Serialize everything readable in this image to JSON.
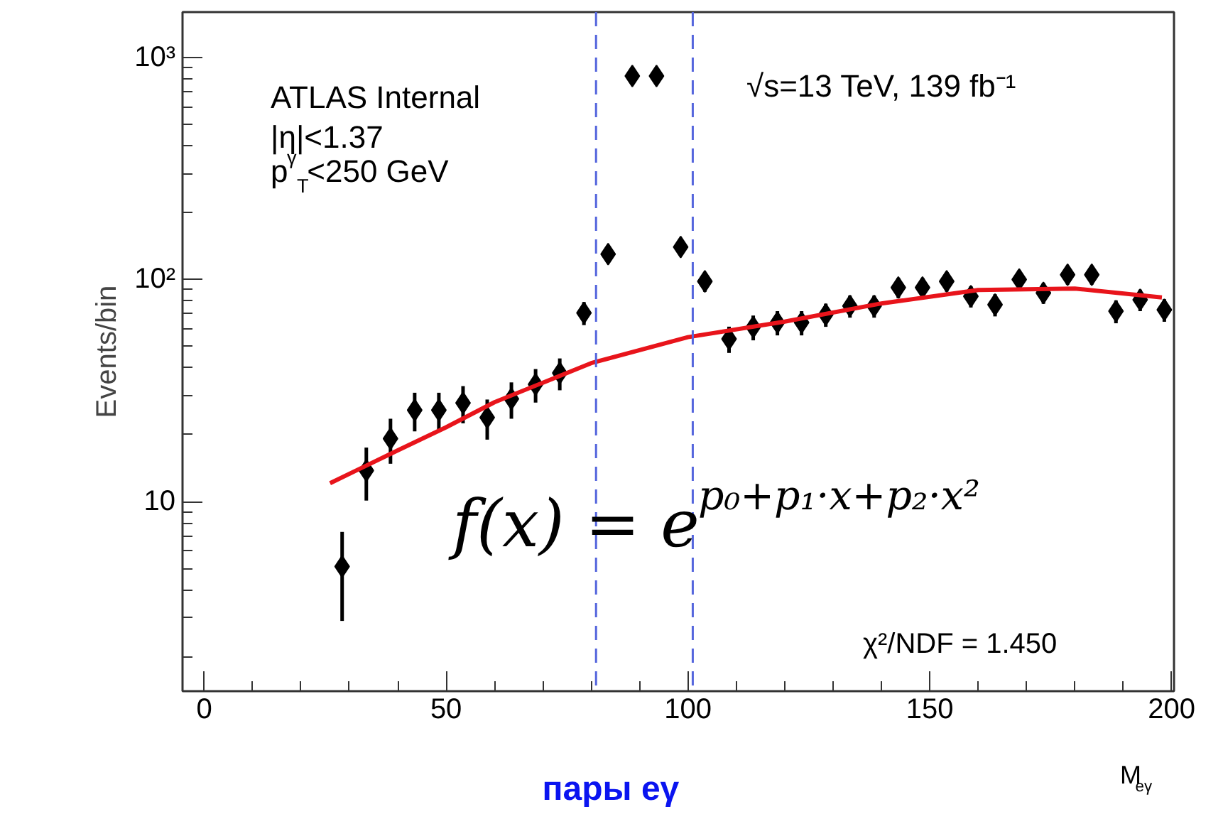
{
  "chart_data": {
    "type": "scatter",
    "xlabel": "M$_{eγ}$",
    "ylabel": "Events/bin",
    "log": "y",
    "xlim": [
      -4.5,
      200.5
    ],
    "xticks": [
      0,
      50,
      100,
      150,
      200
    ],
    "ylim": [
      1.4,
      1600
    ],
    "yticks": [
      10,
      {
        "value": 100,
        "label": "10²"
      },
      {
        "value": 1000,
        "label": "10³"
      }
    ],
    "series": [
      {
        "marker": "diamond",
        "color": "#000000",
        "x": [
          28.5,
          33.5,
          38.5,
          43.5,
          48.5,
          53.5,
          58.5,
          63.5,
          68.5,
          73.5,
          78.5,
          83.5,
          88.5,
          93.5,
          98.5,
          103.5,
          108.5,
          113.5,
          118.5,
          123.5,
          128.5,
          133.5,
          138.5,
          143.5,
          148.5,
          153.5,
          158.5,
          163.5,
          168.5,
          173.5,
          178.5,
          183.5,
          188.5,
          193.5,
          198.5
        ],
        "values": [
          5.1,
          13.8,
          19.2,
          25.8,
          25.8,
          27.8,
          23.9,
          29,
          33.7,
          37.9,
          70.7,
          130,
          825,
          825,
          140,
          98,
          54,
          61,
          64,
          64,
          69.5,
          76,
          76,
          92,
          92,
          98,
          84,
          77,
          100,
          87,
          105,
          105,
          72,
          81,
          73
        ],
        "errors": [
          2.2,
          3.7,
          4.4,
          5.1,
          5.1,
          5.3,
          4.9,
          5.4,
          5.8,
          6.2,
          8.4,
          11,
          29,
          29,
          12,
          10,
          7.3,
          7.8,
          8,
          8,
          8.3,
          8.7,
          8.7,
          9.6,
          9.6,
          9.9,
          9.2,
          8.8,
          10,
          9.3,
          10.2,
          10.2,
          8.5,
          9,
          8.5
        ]
      },
      {
        "type": "line",
        "color": "#e8141b",
        "x": [
          26,
          40,
          50,
          60,
          80,
          100,
          120,
          140,
          160,
          180,
          198
        ],
        "values": [
          12.1,
          17,
          21.6,
          28,
          42,
          55,
          64.6,
          78,
          89.6,
          91,
          83
        ]
      }
    ],
    "ref_lines": [
      {
        "axis": "x",
        "value": 81,
        "color": "#5566dd",
        "line_style": "dashed"
      },
      {
        "axis": "x",
        "value": 101,
        "color": "#5566dd",
        "line_style": "dashed"
      }
    ],
    "annotations": [
      "ATLAS Internal",
      "|η|<1.37",
      "p$^{γ}$$_{T}$<250 GeV",
      "√s=13 TeV, 139 fb⁻¹",
      "f(x) = e$^{p₀+p₁·x+p₂·x²}$",
      "χ²/NDF = 1.450",
      "пары eγ"
    ],
    "grid": false
  }
}
